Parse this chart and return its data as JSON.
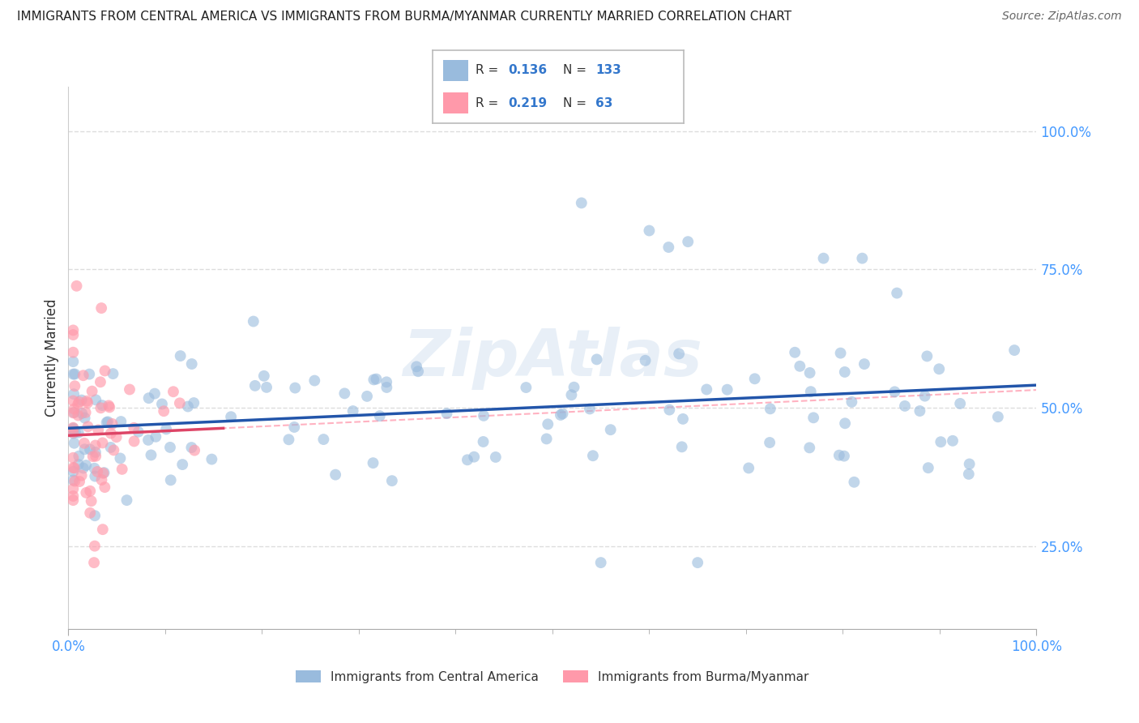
{
  "title": "IMMIGRANTS FROM CENTRAL AMERICA VS IMMIGRANTS FROM BURMA/MYANMAR CURRENTLY MARRIED CORRELATION CHART",
  "source": "Source: ZipAtlas.com",
  "ylabel": "Currently Married",
  "legend_labels": [
    "Immigrants from Central America",
    "Immigrants from Burma/Myanmar"
  ],
  "r_values": [
    0.136,
    0.219
  ],
  "n_values": [
    133,
    63
  ],
  "blue_color": "#99BBDD",
  "pink_color": "#FF99AA",
  "trend_blue": "#2255AA",
  "trend_pink": "#DD4466",
  "diag_color": "#FFAABB",
  "watermark": "ZipAtlas",
  "background_color": "#FFFFFF",
  "grid_color": "#DDDDDD",
  "ytick_labels": [
    "25.0%",
    "50.0%",
    "75.0%",
    "100.0%"
  ],
  "ytick_positions": [
    0.25,
    0.5,
    0.75,
    1.0
  ],
  "tick_color": "#4499FF",
  "text_color": "#333333"
}
